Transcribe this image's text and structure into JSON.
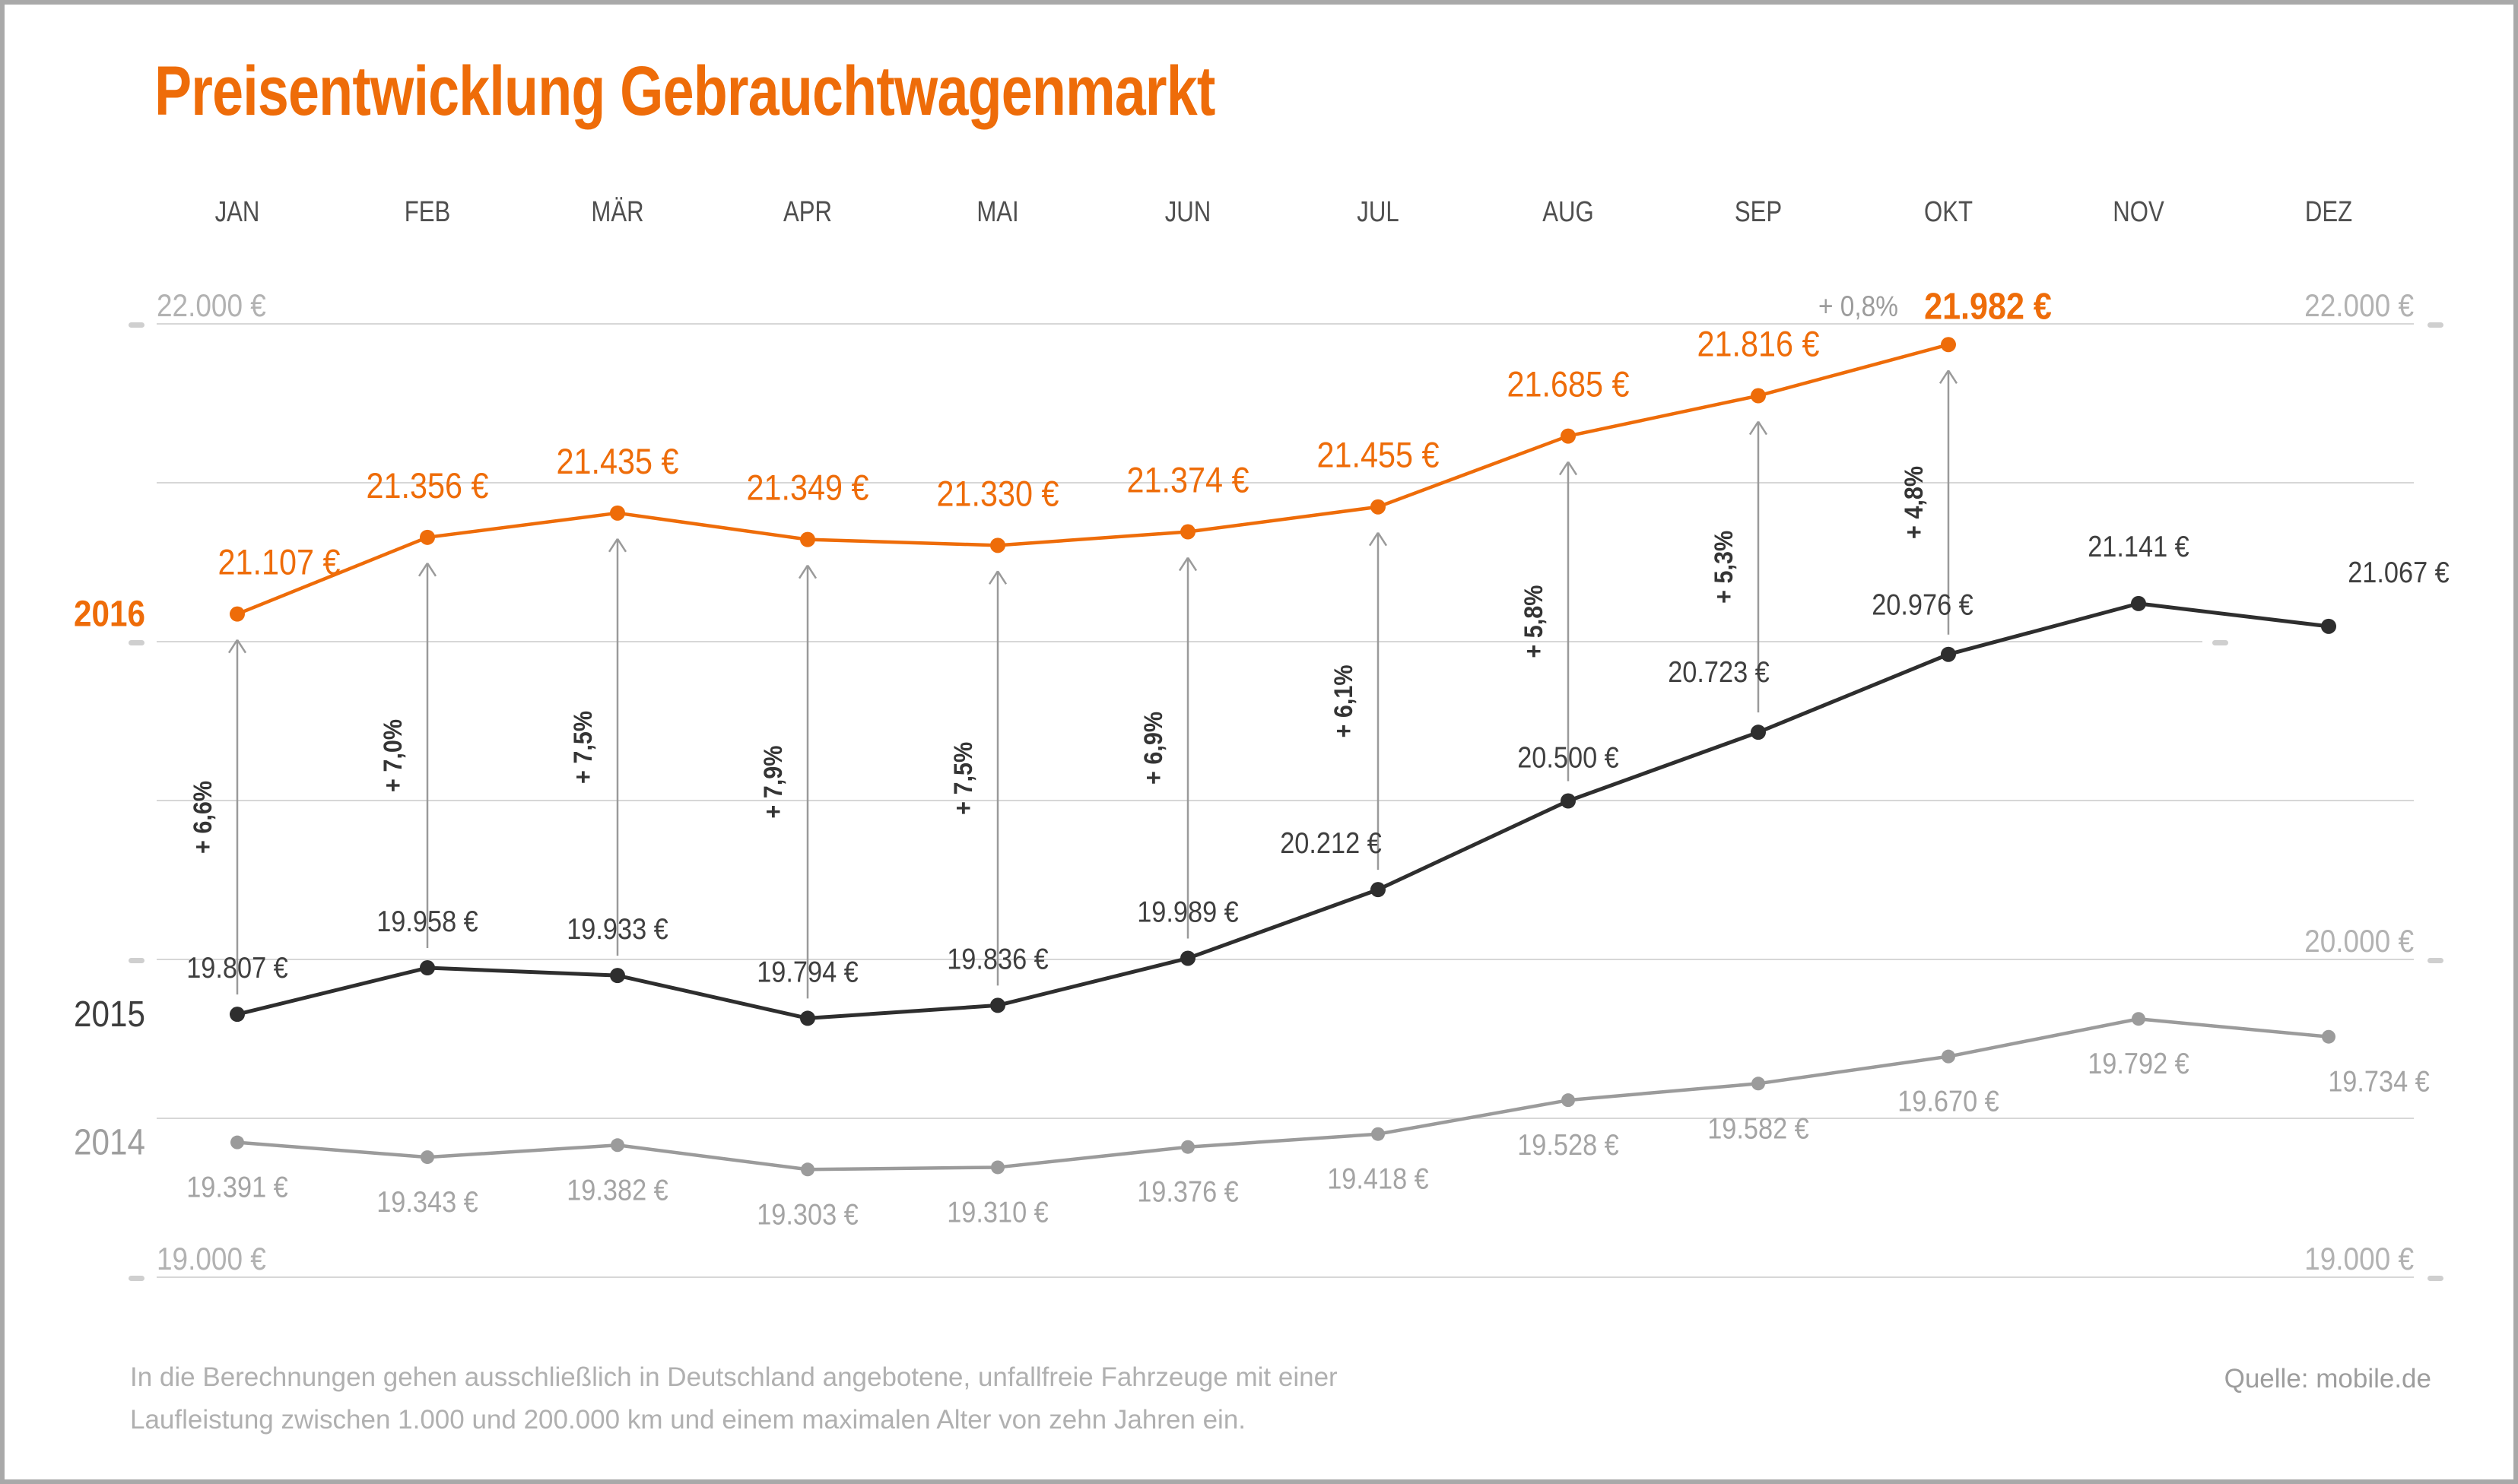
{
  "title": "Preisentwicklung Gebrauchtwagenmarkt",
  "accent_color": "#ee6c09",
  "footer": {
    "note_lines": [
      "In die Berechnungen gehen ausschließlich in Deutschland angebotene, unfallfreie Fahrzeuge mit einer",
      "Laufleistung zwischen 1.000 und 200.000 km und einem maximalen Alter von zehn Jahren ein."
    ],
    "source": "Quelle: mobile.de"
  },
  "chart_data": {
    "type": "line",
    "title": "Preisentwicklung Gebrauchtwagenmarkt",
    "y_unit": "€",
    "ylim": [
      19000,
      22250
    ],
    "grid": true,
    "gridlines": [
      22000,
      21500,
      21000,
      20500,
      20000,
      19500,
      19000
    ],
    "tick_values": [
      22000,
      21000,
      20000,
      19000
    ],
    "axis_labels": {
      "left": [
        {
          "value": 22000,
          "text": "22.000 €"
        },
        {
          "value": 19000,
          "text": "19.000 €"
        }
      ],
      "right": [
        {
          "value": 22000,
          "text": "22.000 €"
        },
        {
          "value": 20000,
          "text": "20.000 €"
        },
        {
          "value": 19000,
          "text": "19.000 €"
        }
      ]
    },
    "categories": [
      "JAN",
      "FEB",
      "MÄR",
      "APR",
      "MAI",
      "JUN",
      "JUL",
      "AUG",
      "SEP",
      "OKT",
      "NOV",
      "DEZ"
    ],
    "legend_position": "left-year-labels",
    "series": [
      {
        "name": "2016",
        "color": "#ee6c09",
        "values": [
          21107,
          21356,
          21435,
          21349,
          21330,
          21374,
          21455,
          21685,
          21816,
          21982,
          null,
          null
        ],
        "point_labels": [
          "21.107 €",
          "21.356 €",
          "21.435 €",
          "21.349 €",
          "21.330 €",
          "21.374 €",
          "21.455 €",
          "21.685 €",
          "21.816 €",
          "21.982 €",
          null,
          null
        ]
      },
      {
        "name": "2015",
        "color": "#2e2e2e",
        "values": [
          19807,
          19958,
          19933,
          19794,
          19836,
          19989,
          20212,
          20500,
          20723,
          20976,
          21141,
          21067
        ],
        "point_labels": [
          "19.807 €",
          "19.958 €",
          "19.933 €",
          "19.794 €",
          "19.836 €",
          "19.989 €",
          "20.212 €",
          "20.500 €",
          "20.723 €",
          "20.976 €",
          "21.141 €",
          "21.067 €"
        ]
      },
      {
        "name": "2014",
        "color": "#9b9b9b",
        "values": [
          19391,
          19343,
          19382,
          19303,
          19310,
          19376,
          19418,
          19528,
          19582,
          19670,
          19792,
          19734
        ],
        "point_labels": [
          "19.391 €",
          "19.343 €",
          "19.382 €",
          "19.303 €",
          "19.310 €",
          "19.376 €",
          "19.418 €",
          "19.528 €",
          "19.582 €",
          "19.670 €",
          "19.792 €",
          "19.734 €"
        ]
      }
    ],
    "yoy_percent_labels": [
      "+ 6,6%",
      "+ 7,0%",
      "+ 7,5%",
      "+ 7,9%",
      "+ 7,5%",
      "+ 6,9%",
      "+ 6,1%",
      "+ 5,8%",
      "+ 5,3%",
      "+ 4,8%"
    ],
    "mom_annotation": "+ 0,8%"
  }
}
